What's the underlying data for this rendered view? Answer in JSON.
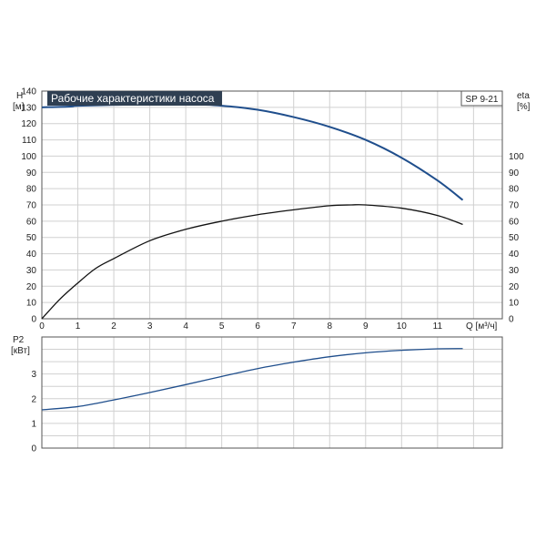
{
  "title": "Рабочие характеристики насоса",
  "model": "SP 9-21",
  "chart_data": [
    {
      "type": "line",
      "name": "head-eta",
      "x_axis": {
        "label": "Q [м³/ч]",
        "min": 0,
        "max": 12.8,
        "ticks": [
          0,
          1,
          2,
          3,
          4,
          5,
          6,
          7,
          8,
          9,
          10,
          11
        ]
      },
      "y_left": {
        "label_top": "H",
        "label_unit": "[м]",
        "min": 0,
        "max": 140,
        "ticks": [
          0,
          10,
          20,
          30,
          40,
          50,
          60,
          70,
          80,
          90,
          100,
          110,
          120,
          130,
          140
        ]
      },
      "y_right": {
        "label_top": "eta",
        "label_unit": "[%]",
        "min": 0,
        "max": 140,
        "ticks": [
          0,
          10,
          20,
          30,
          40,
          50,
          60,
          70,
          80,
          90,
          100
        ]
      },
      "grid": true,
      "series": [
        {
          "axis": "left",
          "color": "#1f4e8c",
          "x": [
            0,
            0.8,
            1,
            2,
            3,
            4,
            5,
            6,
            7,
            8,
            9,
            10,
            11,
            11.7
          ],
          "y": [
            130,
            130.5,
            131,
            131.5,
            132,
            132,
            131,
            128.5,
            124,
            118,
            110,
            99,
            85,
            73
          ]
        },
        {
          "axis": "right",
          "color": "#111111",
          "x": [
            0,
            0.5,
            1,
            1.5,
            2,
            3,
            4,
            5,
            6,
            7,
            8,
            8.6,
            9,
            10,
            11,
            11.7
          ],
          "y": [
            0,
            12,
            22,
            31,
            37,
            48,
            55,
            60,
            64,
            67,
            69.5,
            70,
            70,
            68,
            63.5,
            58
          ]
        }
      ]
    },
    {
      "type": "line",
      "name": "power",
      "x_axis": {
        "min": 0,
        "max": 12.8
      },
      "y_left": {
        "label_top": "P2",
        "label_unit": "[кВт]",
        "min": 0,
        "max": 4.5,
        "ticks": [
          0,
          1,
          2,
          3
        ]
      },
      "grid": true,
      "series": [
        {
          "axis": "left",
          "color": "#1f4e8c",
          "x": [
            0,
            1,
            2,
            3,
            4,
            5,
            6,
            7,
            8,
            9,
            10,
            11,
            11.7
          ],
          "y": [
            1.55,
            1.68,
            1.95,
            2.25,
            2.57,
            2.9,
            3.22,
            3.48,
            3.7,
            3.86,
            3.96,
            4.02,
            4.03
          ]
        }
      ]
    }
  ]
}
